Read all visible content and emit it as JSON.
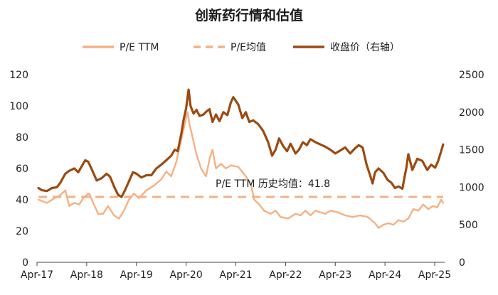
{
  "colors": {
    "pe": "#F4B183",
    "pe_mean": "#F4B183",
    "price": "#9B4A10",
    "axis": "#444444"
  },
  "chart_data": {
    "type": "line",
    "title": "创新药行情和估值",
    "legend": [
      "P/E TTM",
      "P/E均值",
      "收盘价（右轴）"
    ],
    "legend_position": "top",
    "x_ticks": [
      "Apr-17",
      "Apr-18",
      "Apr-19",
      "Apr-20",
      "Apr-21",
      "Apr-22",
      "Apr-23",
      "Apr-24",
      "Apr-25"
    ],
    "x_range": [
      2017.25,
      2025.45
    ],
    "y_left": {
      "ticks": [
        0,
        20,
        40,
        60,
        80,
        100,
        120
      ],
      "range": [
        0,
        120
      ]
    },
    "y_right": {
      "ticks": [
        0,
        500,
        1000,
        1500,
        2000,
        2500
      ],
      "range": [
        0,
        2500
      ]
    },
    "grid": false,
    "annotation": "P/E TTM 历史均值：41.8",
    "series": [
      {
        "name": "P/E TTM",
        "axis": "left",
        "style": "solid",
        "points": [
          [
            2017.28,
            40
          ],
          [
            2017.45,
            38
          ],
          [
            2017.6,
            41
          ],
          [
            2017.72,
            43
          ],
          [
            2017.82,
            46
          ],
          [
            2017.9,
            36
          ],
          [
            2018.0,
            38
          ],
          [
            2018.1,
            37
          ],
          [
            2018.2,
            42
          ],
          [
            2018.3,
            44
          ],
          [
            2018.38,
            38
          ],
          [
            2018.48,
            31
          ],
          [
            2018.58,
            31
          ],
          [
            2018.68,
            36
          ],
          [
            2018.8,
            30
          ],
          [
            2018.9,
            28
          ],
          [
            2019.0,
            33
          ],
          [
            2019.1,
            40
          ],
          [
            2019.2,
            44
          ],
          [
            2019.3,
            41
          ],
          [
            2019.45,
            46
          ],
          [
            2019.6,
            49
          ],
          [
            2019.75,
            53
          ],
          [
            2019.85,
            58
          ],
          [
            2019.95,
            55
          ],
          [
            2020.05,
            64
          ],
          [
            2020.15,
            78
          ],
          [
            2020.22,
            88
          ],
          [
            2020.28,
            96
          ],
          [
            2020.32,
            88
          ],
          [
            2020.38,
            80
          ],
          [
            2020.45,
            70
          ],
          [
            2020.55,
            60
          ],
          [
            2020.65,
            55
          ],
          [
            2020.72,
            66
          ],
          [
            2020.78,
            72
          ],
          [
            2020.85,
            60
          ],
          [
            2020.95,
            63
          ],
          [
            2021.05,
            60
          ],
          [
            2021.15,
            62
          ],
          [
            2021.3,
            61
          ],
          [
            2021.45,
            55
          ],
          [
            2021.55,
            50
          ],
          [
            2021.62,
            40
          ],
          [
            2021.72,
            37
          ],
          [
            2021.82,
            33
          ],
          [
            2021.95,
            31
          ],
          [
            2022.05,
            33
          ],
          [
            2022.15,
            29
          ],
          [
            2022.3,
            28
          ],
          [
            2022.45,
            31
          ],
          [
            2022.55,
            30
          ],
          [
            2022.65,
            33
          ],
          [
            2022.75,
            30
          ],
          [
            2022.85,
            33
          ],
          [
            2022.95,
            32
          ],
          [
            2023.05,
            31
          ],
          [
            2023.15,
            33
          ],
          [
            2023.3,
            32
          ],
          [
            2023.45,
            30
          ],
          [
            2023.6,
            29
          ],
          [
            2023.75,
            30
          ],
          [
            2023.9,
            29
          ],
          [
            2024.05,
            25
          ],
          [
            2024.12,
            22
          ],
          [
            2024.22,
            24
          ],
          [
            2024.32,
            25
          ],
          [
            2024.42,
            24
          ],
          [
            2024.52,
            27
          ],
          [
            2024.62,
            26
          ],
          [
            2024.72,
            28
          ],
          [
            2024.82,
            34
          ],
          [
            2024.92,
            33
          ],
          [
            2025.02,
            37
          ],
          [
            2025.12,
            34
          ],
          [
            2025.22,
            36
          ],
          [
            2025.3,
            35
          ],
          [
            2025.38,
            40
          ],
          [
            2025.42,
            38
          ]
        ]
      },
      {
        "name": "P/E均值",
        "axis": "left",
        "style": "dashed",
        "points": [
          [
            2017.28,
            41.8
          ],
          [
            2025.42,
            41.8
          ]
        ]
      },
      {
        "name": "收盘价（右轴）",
        "axis": "right",
        "style": "solid",
        "points": [
          [
            2017.28,
            990
          ],
          [
            2017.35,
            960
          ],
          [
            2017.45,
            950
          ],
          [
            2017.55,
            990
          ],
          [
            2017.65,
            1000
          ],
          [
            2017.72,
            1060
          ],
          [
            2017.82,
            1180
          ],
          [
            2017.9,
            1220
          ],
          [
            2018.0,
            1250
          ],
          [
            2018.08,
            1200
          ],
          [
            2018.15,
            1280
          ],
          [
            2018.22,
            1360
          ],
          [
            2018.28,
            1340
          ],
          [
            2018.35,
            1240
          ],
          [
            2018.45,
            1090
          ],
          [
            2018.55,
            1120
          ],
          [
            2018.65,
            1180
          ],
          [
            2018.72,
            1140
          ],
          [
            2018.8,
            1010
          ],
          [
            2018.88,
            900
          ],
          [
            2018.95,
            870
          ],
          [
            2019.02,
            960
          ],
          [
            2019.1,
            1080
          ],
          [
            2019.18,
            1200
          ],
          [
            2019.25,
            1180
          ],
          [
            2019.35,
            1130
          ],
          [
            2019.45,
            1160
          ],
          [
            2019.55,
            1160
          ],
          [
            2019.65,
            1250
          ],
          [
            2019.75,
            1300
          ],
          [
            2019.85,
            1360
          ],
          [
            2019.95,
            1420
          ],
          [
            2020.02,
            1500
          ],
          [
            2020.08,
            1480
          ],
          [
            2020.15,
            1700
          ],
          [
            2020.2,
            1900
          ],
          [
            2020.25,
            2050
          ],
          [
            2020.3,
            2300
          ],
          [
            2020.34,
            2080
          ],
          [
            2020.4,
            1980
          ],
          [
            2020.46,
            2030
          ],
          [
            2020.52,
            1950
          ],
          [
            2020.6,
            1970
          ],
          [
            2020.66,
            2010
          ],
          [
            2020.72,
            2040
          ],
          [
            2020.78,
            1870
          ],
          [
            2020.85,
            1970
          ],
          [
            2020.92,
            1880
          ],
          [
            2021.0,
            2000
          ],
          [
            2021.08,
            1960
          ],
          [
            2021.15,
            2130
          ],
          [
            2021.2,
            2200
          ],
          [
            2021.25,
            2150
          ],
          [
            2021.3,
            2100
          ],
          [
            2021.38,
            1920
          ],
          [
            2021.45,
            2000
          ],
          [
            2021.52,
            1870
          ],
          [
            2021.6,
            1890
          ],
          [
            2021.7,
            1840
          ],
          [
            2021.8,
            1750
          ],
          [
            2021.9,
            1600
          ],
          [
            2021.98,
            1420
          ],
          [
            2022.05,
            1500
          ],
          [
            2022.12,
            1650
          ],
          [
            2022.2,
            1550
          ],
          [
            2022.28,
            1480
          ],
          [
            2022.35,
            1580
          ],
          [
            2022.45,
            1450
          ],
          [
            2022.52,
            1500
          ],
          [
            2022.6,
            1600
          ],
          [
            2022.68,
            1560
          ],
          [
            2022.75,
            1640
          ],
          [
            2022.85,
            1600
          ],
          [
            2022.95,
            1570
          ],
          [
            2023.05,
            1540
          ],
          [
            2023.15,
            1500
          ],
          [
            2023.25,
            1450
          ],
          [
            2023.35,
            1490
          ],
          [
            2023.45,
            1530
          ],
          [
            2023.55,
            1450
          ],
          [
            2023.65,
            1520
          ],
          [
            2023.72,
            1560
          ],
          [
            2023.8,
            1530
          ],
          [
            2023.88,
            1300
          ],
          [
            2023.95,
            1160
          ],
          [
            2024.0,
            1050
          ],
          [
            2024.05,
            1200
          ],
          [
            2024.12,
            1250
          ],
          [
            2024.22,
            1190
          ],
          [
            2024.3,
            1100
          ],
          [
            2024.38,
            1060
          ],
          [
            2024.45,
            990
          ],
          [
            2024.52,
            1010
          ],
          [
            2024.6,
            980
          ],
          [
            2024.68,
            1260
          ],
          [
            2024.72,
            1440
          ],
          [
            2024.8,
            1230
          ],
          [
            2024.9,
            1380
          ],
          [
            2025.0,
            1350
          ],
          [
            2025.1,
            1230
          ],
          [
            2025.18,
            1300
          ],
          [
            2025.26,
            1260
          ],
          [
            2025.32,
            1350
          ],
          [
            2025.38,
            1480
          ],
          [
            2025.42,
            1570
          ]
        ]
      }
    ]
  }
}
